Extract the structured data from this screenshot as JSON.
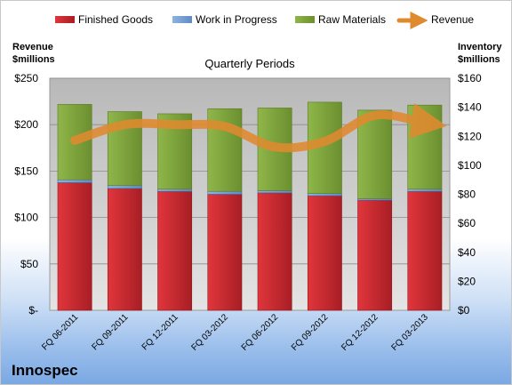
{
  "company": "Innospec",
  "colors": {
    "finished_goods": "#c0272d",
    "work_in_progress": "#4f81bd",
    "raw_materials": "#7ea23a",
    "revenue": "#e08a2e"
  },
  "chart_data": {
    "type": "bar",
    "stacked": true,
    "title": "Quarterly Periods",
    "left_axis_label": [
      "Revenue",
      "$millions"
    ],
    "right_axis_label": [
      "Inventory",
      "$millions"
    ],
    "categories": [
      "FQ 06-2011",
      "FQ 09-2011",
      "FQ 12-2011",
      "FQ 03-2012",
      "FQ 06-2012",
      "FQ 09-2012",
      "FQ 12-2012",
      "FQ 03-2013"
    ],
    "left_ticks": [
      "$-",
      "$50",
      "$100",
      "$150",
      "$200",
      "$250"
    ],
    "right_ticks": [
      "$0",
      "$20",
      "$40",
      "$60",
      "$80",
      "$100",
      "$120",
      "$140",
      "$160"
    ],
    "left_range": [
      0,
      250
    ],
    "right_range": [
      0,
      160
    ],
    "grid": true,
    "legend_position": "top",
    "series": [
      {
        "name": "Finished Goods",
        "axis": "right",
        "type": "bar",
        "values": [
          88,
          84,
          82,
          80,
          81,
          79,
          76,
          82
        ]
      },
      {
        "name": "Work in Progress",
        "axis": "right",
        "type": "bar",
        "values": [
          2,
          2,
          1.5,
          2,
          1.5,
          1.5,
          1,
          1.5
        ]
      },
      {
        "name": "Raw Materials",
        "axis": "right",
        "type": "bar",
        "values": [
          52,
          51,
          52,
          57,
          57,
          63,
          61,
          58
        ]
      },
      {
        "name": "Revenue",
        "axis": "left",
        "type": "line",
        "values": [
          183,
          200,
          200,
          198,
          176,
          182,
          210,
          202
        ]
      }
    ]
  }
}
